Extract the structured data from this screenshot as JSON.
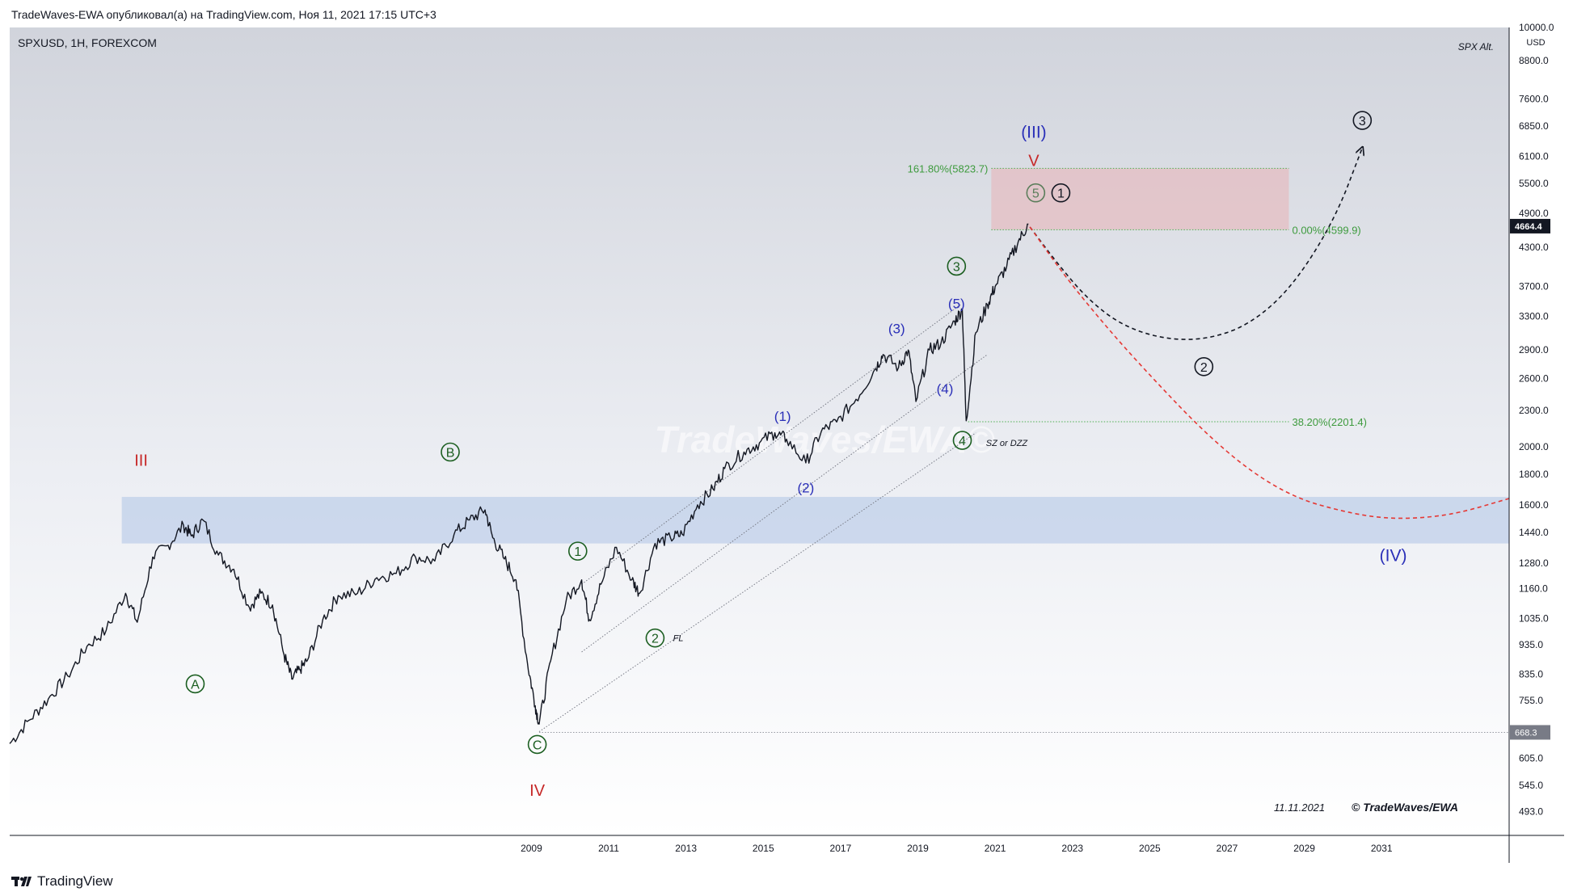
{
  "header": {
    "published_by": "TradeWaves-EWA опубликовал(а) на TradingView.com, Ноя 11, 2021 17:15 UTC+3"
  },
  "footer": {
    "brand": "TradingView"
  },
  "chart_data": {
    "type": "line",
    "symbol_info": "SPXUSD, 1H, FOREXCOM",
    "corner_note": "SPX Alt.",
    "watermark": "TradeWaves/EWA©",
    "date_stamp": "11.11.2021",
    "copyright": "© TradeWaves/EWA",
    "price_axis_unit": "USD",
    "y_scale": "log",
    "ylim": [
      450,
      10000
    ],
    "xlim": [
      1995.5,
      2034.3
    ],
    "x_ticks": [
      2009,
      2011,
      2013,
      2015,
      2017,
      2019,
      2021,
      2023,
      2025,
      2027,
      2029,
      2031
    ],
    "y_ticks": [
      "10000.0",
      "8800.0",
      "7600.0",
      "6850.0",
      "6100.0",
      "5500.0",
      "4900.0",
      "4300.0",
      "3700.0",
      "3300.0",
      "2900.0",
      "2600.0",
      "2300.0",
      "2000.0",
      "1800.0",
      "1600.0",
      "1440.0",
      "1280.0",
      "1160.0",
      "1035.0",
      "935.0",
      "835.0",
      "755.0",
      "605.0",
      "545.0",
      "493.0"
    ],
    "y_tick_values": [
      10000,
      8800,
      7600,
      6850,
      6100,
      5500,
      4900,
      4300,
      3700,
      3300,
      2900,
      2600,
      2300,
      2000,
      1800,
      1600,
      1440,
      1280,
      1160,
      1035,
      935,
      835,
      755,
      605,
      545,
      493
    ],
    "last_price": {
      "label": "4664.4",
      "value": 4664.4
    },
    "low_marker": {
      "label": "668.3",
      "value": 668.3
    },
    "series": [
      {
        "x": [
          1995.5,
          1996.0,
          1996.5,
          1997.0,
          1997.5,
          1998.0,
          1998.5,
          1998.8,
          1999.2,
          1999.6,
          2000.0,
          2000.2,
          2000.5,
          2000.9,
          2001.3,
          2001.7,
          2002.0,
          2002.3,
          2002.6,
          2002.8,
          2003.0,
          2003.2,
          2003.6,
          2004.0,
          2004.5,
          2005.0,
          2005.5,
          2006.0,
          2006.5,
          2007.0,
          2007.4,
          2007.8,
          2008.0,
          2008.3,
          2008.6,
          2008.9,
          2009.1,
          2009.2,
          2009.5,
          2009.9,
          2010.3,
          2010.5,
          2010.8,
          2011.2,
          2011.6,
          2011.8,
          2012.2,
          2012.6,
          2012.9,
          2013.3,
          2013.7,
          2014.0,
          2014.5,
          2014.9,
          2015.3,
          2015.6,
          2016.1,
          2016.5,
          2016.9,
          2017.4,
          2017.9,
          2018.1,
          2018.5,
          2018.75,
          2018.95,
          2019.3,
          2019.6,
          2019.95,
          2020.15,
          2020.25,
          2020.5,
          2020.8,
          2021.0,
          2021.3,
          2021.6,
          2021.86
        ],
        "y": [
          640,
          700,
          760,
          830,
          930,
          990,
          1140,
          1020,
          1310,
          1370,
          1480,
          1420,
          1510,
          1320,
          1250,
          1080,
          1140,
          1090,
          900,
          820,
          850,
          880,
          1030,
          1130,
          1140,
          1210,
          1230,
          1310,
          1290,
          1430,
          1510,
          1570,
          1410,
          1300,
          1200,
          870,
          740,
          690,
          880,
          1110,
          1200,
          1030,
          1180,
          1360,
          1200,
          1140,
          1380,
          1410,
          1430,
          1600,
          1700,
          1840,
          1960,
          2030,
          2110,
          2060,
          1880,
          2120,
          2200,
          2400,
          2700,
          2850,
          2710,
          2900,
          2380,
          2900,
          2980,
          3240,
          3390,
          2210,
          3100,
          3450,
          3700,
          4000,
          4400,
          4700
        ]
      }
    ],
    "zones": [
      {
        "name": "Fib extension target",
        "x_from": 2020.9,
        "x_to": 2028.6,
        "y_from": 4599.9,
        "y_to": 5823.7,
        "color": "#e6b8bd"
      },
      {
        "name": "Previous highs zone",
        "x_from": 1998.4,
        "x_to": 2034.3,
        "y_from": 1380,
        "y_to": 1650,
        "color": "#b8cbe8"
      }
    ],
    "levels": [
      {
        "label": "161.80%(5823.7)",
        "value": 5823.7,
        "x_from": 2020.9,
        "x_to": 2028.6,
        "color": "#4caf50"
      },
      {
        "label": "0.00%(4599.9)",
        "value": 4599.9,
        "x_from": 2020.9,
        "x_to": 2028.6,
        "color": "#4caf50"
      },
      {
        "label": "38.20%(2201.4)",
        "value": 2201.4,
        "x_from": 2020.3,
        "x_to": 2028.6,
        "color": "#4caf50"
      },
      {
        "label": "",
        "value": 668.3,
        "x_from": 2009.2,
        "x_to": 2034.3,
        "color": "#9598a1"
      }
    ],
    "trend_lines": [
      {
        "x1": 2010.3,
        "y1": 1180,
        "x2": 2020.1,
        "y2": 3450
      },
      {
        "x1": 2010.3,
        "y1": 910,
        "x2": 2020.8,
        "y2": 2850
      },
      {
        "x1": 2009.2,
        "y1": 670,
        "x2": 2020.5,
        "y2": 2110
      }
    ],
    "projections": [
      {
        "name": "alt bullish path",
        "color": "#131722",
        "x": [
          2021.9,
          2022.6,
          2023.4,
          2024.3,
          2025.4,
          2026.5,
          2027.6,
          2028.7,
          2029.8,
          2030.5
        ],
        "y": [
          4650,
          4050,
          3520,
          3180,
          3020,
          3020,
          3200,
          3700,
          4800,
          6300
        ]
      },
      {
        "name": "main corrective path",
        "color": "#e53935",
        "x": [
          2021.9,
          2022.8,
          2024.0,
          2025.2,
          2026.4,
          2027.6,
          2028.8,
          2030.0,
          2031.0,
          2032.0,
          2033.0,
          2034.3
        ],
        "y": [
          4650,
          3850,
          3100,
          2550,
          2120,
          1820,
          1640,
          1560,
          1520,
          1520,
          1550,
          1640
        ]
      }
    ],
    "annotations": [
      {
        "text": "III",
        "x": 1998.9,
        "y": 1900,
        "color": "#c62828",
        "circled": false,
        "size": 20
      },
      {
        "text": "IV",
        "x": 2009.15,
        "y": 535,
        "color": "#c62828",
        "circled": false,
        "size": 20
      },
      {
        "text": "V",
        "x": 2022.0,
        "y": 6000,
        "color": "#c62828",
        "circled": false,
        "size": 20
      },
      {
        "text": "(III)",
        "x": 2022.0,
        "y": 6700,
        "color": "#2a2fb8",
        "circled": false,
        "size": 21
      },
      {
        "text": "(IV)",
        "x": 2031.3,
        "y": 1320,
        "color": "#2a2fb8",
        "circled": false,
        "size": 21
      },
      {
        "text": "A",
        "x": 2000.3,
        "y": 805,
        "color": "#1b5e20",
        "circled": true
      },
      {
        "text": "B",
        "x": 2006.9,
        "y": 1960,
        "color": "#1b5e20",
        "circled": true
      },
      {
        "text": "C",
        "x": 2009.15,
        "y": 638,
        "color": "#1b5e20",
        "circled": true
      },
      {
        "text": "1",
        "x": 2010.2,
        "y": 1340,
        "color": "#1b5e20",
        "circled": true
      },
      {
        "text": "2",
        "x": 2012.2,
        "y": 960,
        "color": "#1b5e20",
        "circled": true
      },
      {
        "text": "3",
        "x": 2020.0,
        "y": 4000,
        "color": "#1b5e20",
        "circled": true
      },
      {
        "text": "4",
        "x": 2020.15,
        "y": 2050,
        "color": "#1b5e20",
        "circled": true
      },
      {
        "text": "5",
        "x": 2022.05,
        "y": 5300,
        "color": "#5a7d5a",
        "circled": true
      },
      {
        "text": "(1)",
        "x": 2015.5,
        "y": 2250,
        "color": "#2a2fb8",
        "circled": false,
        "size": 17
      },
      {
        "text": "(2)",
        "x": 2016.1,
        "y": 1710,
        "color": "#2a2fb8",
        "circled": false,
        "size": 17
      },
      {
        "text": "(3)",
        "x": 2018.45,
        "y": 3150,
        "color": "#2a2fb8",
        "circled": false,
        "size": 17
      },
      {
        "text": "(4)",
        "x": 2019.7,
        "y": 2500,
        "color": "#2a2fb8",
        "circled": false,
        "size": 17
      },
      {
        "text": "(5)",
        "x": 2020.0,
        "y": 3470,
        "color": "#2a2fb8",
        "circled": false,
        "size": 17
      },
      {
        "text": "1",
        "x": 2022.7,
        "y": 5300,
        "color": "#131722",
        "circled": true
      },
      {
        "text": "2",
        "x": 2026.4,
        "y": 2720,
        "color": "#131722",
        "circled": true
      },
      {
        "text": "3",
        "x": 2030.5,
        "y": 7000,
        "color": "#131722",
        "circled": true
      },
      {
        "text": "FL",
        "x": 2012.8,
        "y": 960,
        "color": "#131722",
        "circled": false,
        "size": 11,
        "italic": true
      },
      {
        "text": "SZ or DZZ",
        "x": 2021.3,
        "y": 2030,
        "color": "#131722",
        "circled": false,
        "size": 11,
        "italic": true
      }
    ]
  }
}
